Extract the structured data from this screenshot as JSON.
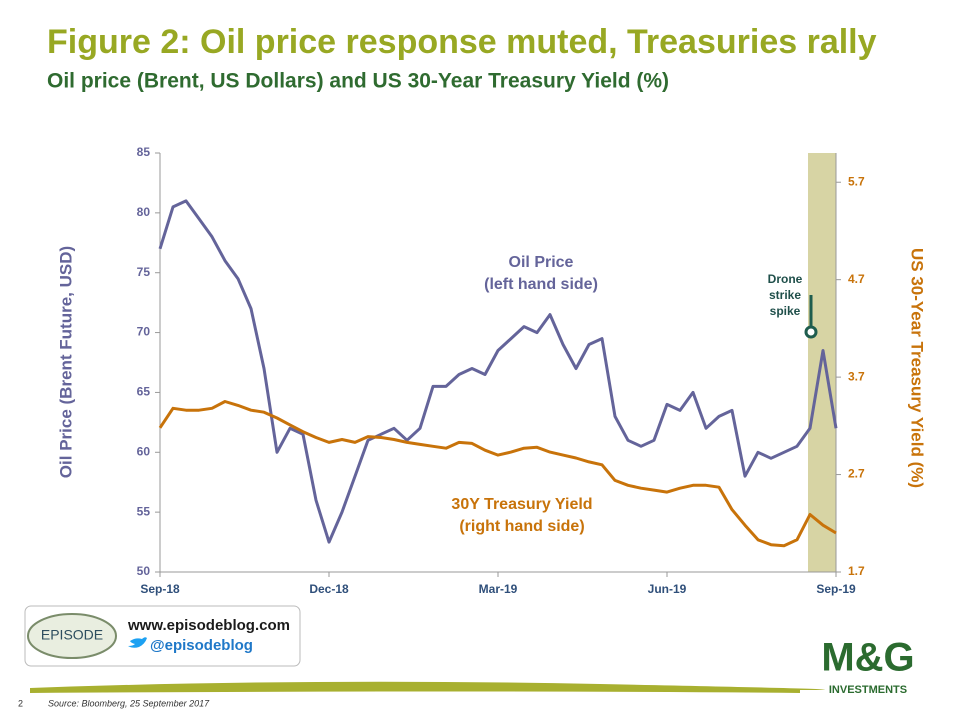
{
  "chart_data": {
    "type": "line",
    "title": "Figure 2: Oil price response muted, Treasuries rally",
    "subtitle": "Oil price (Brent, US Dollars) and US 30-Year Treasury Yield (%)",
    "ylabel": "Oil  Price (Brent Future, USD)",
    "y2label": "US 30-Year Treasury Yield  (%)",
    "categories": [
      "Sep-18",
      null,
      null,
      null,
      null,
      null,
      null,
      null,
      null,
      null,
      null,
      null,
      null,
      "Dec-18",
      null,
      null,
      null,
      null,
      null,
      null,
      null,
      null,
      null,
      null,
      null,
      null,
      "Mar-19",
      null,
      null,
      null,
      null,
      null,
      null,
      null,
      null,
      null,
      null,
      null,
      null,
      "Jun-19",
      null,
      null,
      null,
      null,
      null,
      null,
      null,
      null,
      null,
      null,
      null,
      null,
      "Sep-19"
    ],
    "ylim": [
      50,
      85
    ],
    "yticks": [
      50,
      55,
      60,
      65,
      70,
      75,
      80,
      85
    ],
    "y2lim": [
      1.7,
      6.0
    ],
    "y2ticks": [
      1.7,
      2.7,
      3.7,
      4.7,
      5.7
    ],
    "series": [
      {
        "name": "Oil Price",
        "color": "#64649a",
        "axis": "y",
        "values": [
          77,
          80.5,
          81,
          79.5,
          78,
          76,
          74.5,
          72,
          67,
          60,
          62,
          61.5,
          56,
          52.5,
          55,
          58,
          61,
          61.5,
          62,
          61,
          62,
          65.5,
          65.5,
          66.5,
          67,
          66.5,
          68.5,
          69.5,
          70.5,
          70,
          71.5,
          69,
          67,
          69,
          69.5,
          63,
          61,
          60.5,
          61,
          64,
          63.5,
          65,
          62,
          63,
          63.5,
          58,
          60,
          59.5,
          60,
          60.5,
          62,
          68.5,
          62
        ]
      },
      {
        "name": "30Y Treasury Yield",
        "color": "#c8730a",
        "axis": "y2",
        "values": [
          3.18,
          3.38,
          3.36,
          3.36,
          3.38,
          3.45,
          3.41,
          3.36,
          3.34,
          3.28,
          3.21,
          3.14,
          3.08,
          3.03,
          3.06,
          3.03,
          3.09,
          3.08,
          3.06,
          3.03,
          3.01,
          2.99,
          2.97,
          3.03,
          3.02,
          2.95,
          2.9,
          2.93,
          2.97,
          2.98,
          2.93,
          2.9,
          2.87,
          2.83,
          2.8,
          2.64,
          2.59,
          2.56,
          2.54,
          2.52,
          2.56,
          2.59,
          2.59,
          2.57,
          2.34,
          2.18,
          2.03,
          1.98,
          1.97,
          2.03,
          2.29,
          2.18,
          2.1
        ]
      }
    ],
    "annotations": [
      {
        "lines": [
          "Oil Price",
          "(left hand side)"
        ]
      },
      {
        "lines": [
          "30Y Treasury Yield",
          "(right hand side)"
        ]
      },
      {
        "lines": [
          "Drone",
          "strike",
          "spike"
        ]
      }
    ]
  },
  "footer": {
    "page": "2",
    "source": "Source: Bloomberg, 25 September 2017",
    "blog_logo": "EPISODE",
    "url": "www.episodeblog.com",
    "twitter": "@episodeblog",
    "brand": "M&G",
    "brand_sub": "INVESTMENTS"
  }
}
